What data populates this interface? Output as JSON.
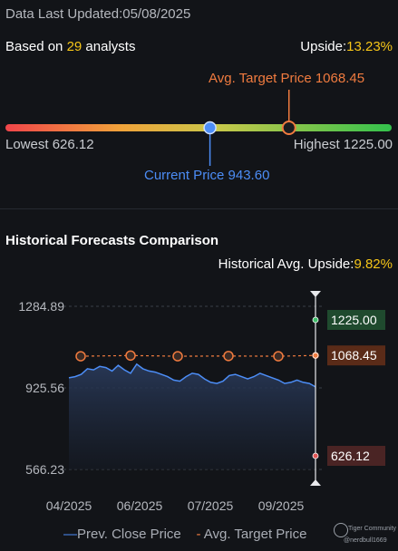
{
  "header": {
    "updated_text": "Data Last Updated:05/08/2025",
    "based_prefix": "Based on ",
    "analyst_count": "29",
    "based_suffix": " analysts",
    "upside_label": "Upside:",
    "upside_value": "13.23%"
  },
  "range": {
    "avg_target_label": "Avg. Target Price 1068.45",
    "lowest_label": "Lowest 626.12",
    "highest_label": "Highest 1225.00",
    "current_label": "Current Price 943.60",
    "low": 626.12,
    "high": 1225.0,
    "current": 943.6,
    "avg_target": 1068.45
  },
  "history": {
    "title": "Historical Forecasts Comparison",
    "upside_label": "Historical Avg. Upside:",
    "upside_value": "9.82%"
  },
  "chart_data": {
    "type": "line",
    "y_ticks": [
      "1284.89",
      "925.56",
      "566.23"
    ],
    "ylim": [
      566.23,
      1284.89
    ],
    "x_ticks": [
      "04/2025",
      "06/2025",
      "07/2025",
      "09/2025"
    ],
    "series": [
      {
        "name": "Prev. Close Price",
        "values": [
          970,
          975,
          985,
          1010,
          1005,
          1020,
          1015,
          1000,
          1025,
          1005,
          990,
          1030,
          1010,
          1000,
          995,
          985,
          975,
          960,
          955,
          975,
          990,
          985,
          965,
          950,
          945,
          955,
          980,
          985,
          975,
          965,
          975,
          990,
          980,
          970,
          960,
          945,
          950,
          960,
          950,
          945,
          930
        ]
      },
      {
        "name": "Avg. Target Price",
        "values": [
          1065,
          1068,
          1065,
          1066,
          1065,
          1068.45
        ]
      }
    ],
    "end_labels": {
      "high": "1225.00",
      "avg": "1068.45",
      "low": "626.12"
    },
    "legend": [
      "Prev. Close Price",
      "Avg. Target Price"
    ]
  },
  "footer": {
    "legend_close": "Prev. Close Price",
    "legend_target": "Avg. Target Price",
    "wm_line1": "Tiger Community",
    "wm_line2": "@nerdbull1669"
  },
  "colors": {
    "background": "#121418",
    "yellow": "#f5c518",
    "orange": "#f07b3f",
    "blue": "#4c8df6",
    "green": "#2e7d4f"
  }
}
